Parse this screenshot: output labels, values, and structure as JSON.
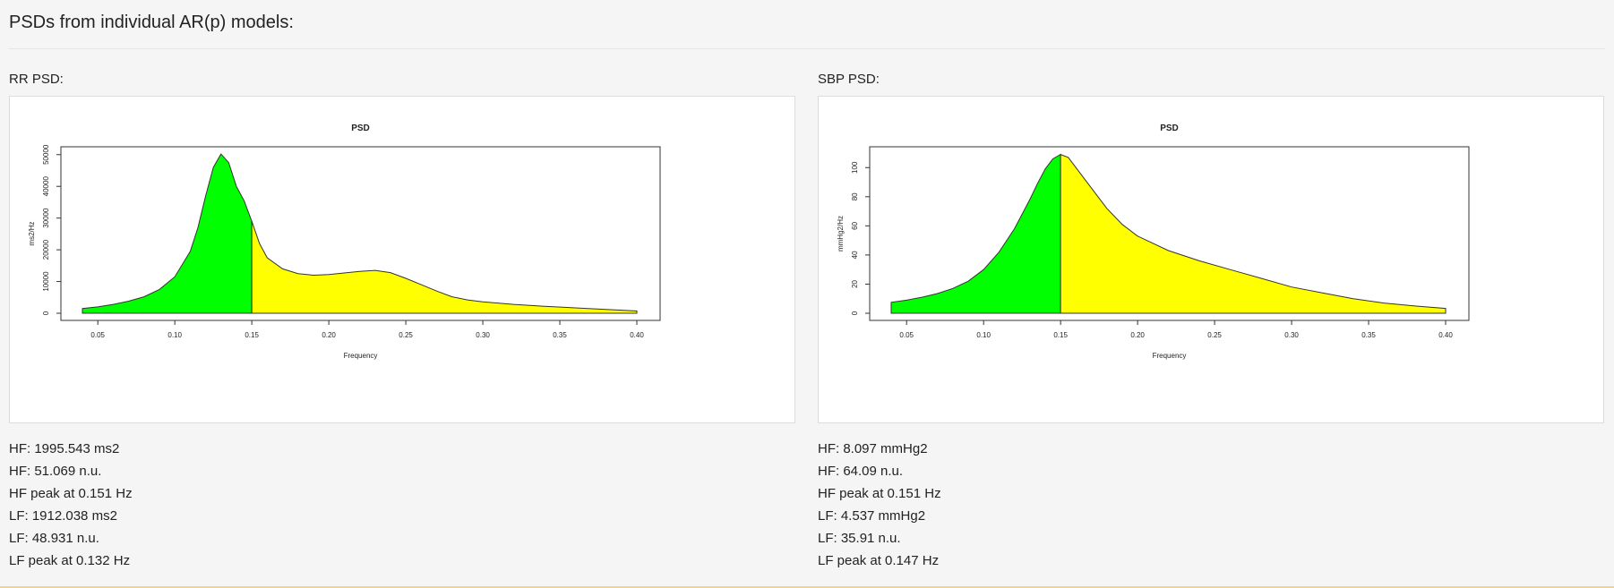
{
  "page": {
    "title": "PSDs from individual AR(p) models:"
  },
  "colors": {
    "lf": "#00ff00",
    "hf": "#ffff00",
    "outline": "#333333"
  },
  "panels": [
    {
      "label": "RR PSD:",
      "stats": [
        "HF: 1995.543 ms2",
        "HF: 51.069 n.u.",
        "HF peak at 0.151 Hz",
        "LF: 1912.038 ms2",
        "LF: 48.931 n.u.",
        "LF peak at 0.132 Hz"
      ]
    },
    {
      "label": "SBP PSD:",
      "stats": [
        "HF: 8.097 mmHg2",
        "HF: 64.09 n.u.",
        "HF peak at 0.151 Hz",
        "LF: 4.537 mmHg2",
        "LF: 35.91 n.u.",
        "LF peak at 0.147 Hz"
      ]
    }
  ],
  "chart_data": [
    {
      "type": "area",
      "title": "PSD",
      "xlabel": "Frequency",
      "ylabel": "ms2/Hz",
      "xlim": [
        0.04,
        0.4
      ],
      "ylim": [
        0,
        50500
      ],
      "xticks": [
        0.05,
        0.1,
        0.15,
        0.2,
        0.25,
        0.3,
        0.35,
        0.4
      ],
      "xtick_labels": [
        "0.05",
        "0.10",
        "0.15",
        "0.20",
        "0.25",
        "0.30",
        "0.35",
        "0.40"
      ],
      "yticks": [
        0,
        10000,
        20000,
        30000,
        40000,
        50000
      ],
      "ytick_labels": [
        "0",
        "10000",
        "20000",
        "30000",
        "40000",
        "50000"
      ],
      "split": 0.15,
      "fill_colors": [
        "#00ff00",
        "#ffff00"
      ],
      "x": [
        0.04,
        0.05,
        0.06,
        0.07,
        0.08,
        0.09,
        0.1,
        0.11,
        0.115,
        0.12,
        0.125,
        0.13,
        0.135,
        0.14,
        0.145,
        0.15,
        0.155,
        0.16,
        0.17,
        0.18,
        0.19,
        0.2,
        0.21,
        0.22,
        0.23,
        0.24,
        0.25,
        0.26,
        0.27,
        0.28,
        0.29,
        0.3,
        0.32,
        0.34,
        0.36,
        0.38,
        0.4
      ],
      "y": [
        1500,
        2000,
        2800,
        3800,
        5200,
        7500,
        11500,
        19500,
        27000,
        37000,
        46000,
        50200,
        47500,
        40000,
        35500,
        29000,
        22000,
        17500,
        14000,
        12500,
        12000,
        12200,
        12700,
        13200,
        13500,
        12800,
        11000,
        9000,
        7000,
        5200,
        4200,
        3600,
        2800,
        2200,
        1700,
        1200,
        700
      ]
    },
    {
      "type": "area",
      "title": "PSD",
      "xlabel": "Frequency",
      "ylabel": "mmHg2/Hz",
      "xlim": [
        0.04,
        0.4
      ],
      "ylim": [
        0,
        110
      ],
      "xticks": [
        0.05,
        0.1,
        0.15,
        0.2,
        0.25,
        0.3,
        0.35,
        0.4
      ],
      "xtick_labels": [
        "0.05",
        "0.10",
        "0.15",
        "0.20",
        "0.25",
        "0.30",
        "0.35",
        "0.40"
      ],
      "yticks": [
        0,
        20,
        40,
        60,
        80,
        100
      ],
      "ytick_labels": [
        "0",
        "20",
        "40",
        "60",
        "80",
        "100"
      ],
      "split": 0.15,
      "fill_colors": [
        "#00ff00",
        "#ffff00"
      ],
      "x": [
        0.04,
        0.05,
        0.06,
        0.07,
        0.08,
        0.09,
        0.1,
        0.11,
        0.12,
        0.13,
        0.135,
        0.14,
        0.145,
        0.15,
        0.155,
        0.16,
        0.17,
        0.18,
        0.19,
        0.2,
        0.22,
        0.24,
        0.26,
        0.28,
        0.3,
        0.32,
        0.34,
        0.36,
        0.38,
        0.4
      ],
      "y": [
        7.5,
        9,
        11,
        13.5,
        17,
        22,
        30,
        42,
        58,
        78,
        89,
        99,
        106,
        109,
        107,
        100,
        86,
        72,
        61,
        53,
        43,
        36,
        30,
        24,
        18,
        14,
        10,
        7,
        5,
        3.3
      ]
    }
  ]
}
